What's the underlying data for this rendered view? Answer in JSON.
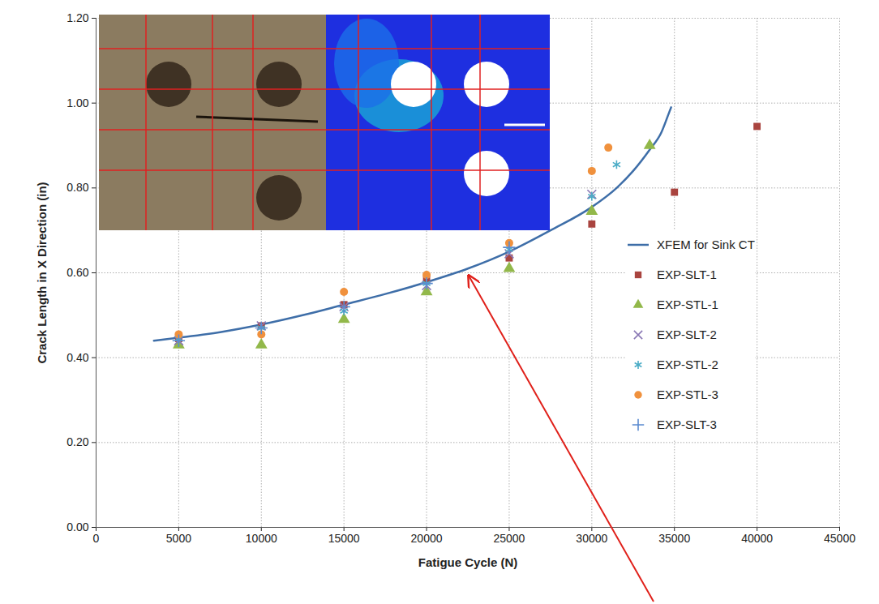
{
  "chart_data": {
    "type": "scatter",
    "x_label": "Fatigue Cycle (N)",
    "y_label": "Crack Length in X Direction (in)",
    "xlim": [
      0,
      45000
    ],
    "xticks": [
      0,
      5000,
      10000,
      15000,
      20000,
      25000,
      30000,
      35000,
      40000,
      45000
    ],
    "ylim": [
      0,
      1.2
    ],
    "yticks": [
      {
        "value": 0,
        "label": "0.00"
      },
      {
        "value": 0.2,
        "label": "0.20"
      },
      {
        "value": 0.4,
        "label": "0.40"
      },
      {
        "value": 0.6,
        "label": "0.60"
      },
      {
        "value": 0.8,
        "label": "0.80"
      },
      {
        "value": 1.0,
        "label": "1.00"
      },
      {
        "value": 1.2,
        "label": "1.20"
      }
    ],
    "grid": true,
    "legend": "right",
    "series": [
      {
        "name": "XFEM for Sink CT",
        "type": "line",
        "color": "#3e6ea8",
        "line_style": "solid",
        "x": [
          3500,
          5000,
          7500,
          10000,
          12500,
          15000,
          17500,
          20000,
          22500,
          25000,
          27500,
          30000,
          31500,
          32500,
          33500,
          34200,
          34700,
          34800
        ],
        "values": [
          0.44,
          0.447,
          0.46,
          0.478,
          0.5,
          0.525,
          0.55,
          0.578,
          0.61,
          0.65,
          0.7,
          0.755,
          0.8,
          0.84,
          0.89,
          0.93,
          0.98,
          0.99
        ]
      },
      {
        "name": "EXP-SLT-1",
        "type": "scatter",
        "color": "#a9443f",
        "marker": "square",
        "x": [
          5000,
          10000,
          15000,
          20000,
          25000,
          30000,
          35000,
          40000
        ],
        "values": [
          0.445,
          0.475,
          0.525,
          0.585,
          0.635,
          0.715,
          0.79,
          0.945
        ]
      },
      {
        "name": "EXP-STL-1",
        "type": "scatter",
        "color": "#92b84a",
        "marker": "triangle",
        "x": [
          5000,
          10000,
          15000,
          20000,
          25000,
          30000,
          33500
        ],
        "values": [
          0.43,
          0.43,
          0.49,
          0.555,
          0.61,
          0.745,
          0.9
        ]
      },
      {
        "name": "EXP-SLT-2",
        "type": "scatter",
        "color": "#8a78b5",
        "marker": "x",
        "x": [
          5000,
          10000,
          15000,
          20000,
          25000,
          30000
        ],
        "values": [
          0.44,
          0.475,
          0.52,
          0.57,
          0.645,
          0.785
        ]
      },
      {
        "name": "EXP-STL-2",
        "type": "scatter",
        "color": "#4bacc6",
        "marker": "asterisk",
        "x": [
          5000,
          10000,
          15000,
          20000,
          25000,
          30000,
          31500
        ],
        "values": [
          0.445,
          0.47,
          0.51,
          0.575,
          0.655,
          0.78,
          0.855
        ]
      },
      {
        "name": "EXP-STL-3",
        "type": "scatter",
        "color": "#f0913d",
        "marker": "circle",
        "x": [
          5000,
          10000,
          15000,
          20000,
          25000,
          30000,
          31000
        ],
        "values": [
          0.455,
          0.455,
          0.555,
          0.595,
          0.67,
          0.84,
          0.895
        ]
      },
      {
        "name": "EXP-SLT-3",
        "type": "scatter",
        "color": "#5b8bd0",
        "marker": "plus",
        "x": [
          5000,
          10000,
          15000,
          20000,
          25000
        ],
        "values": [
          0.44,
          0.47,
          0.52,
          0.575,
          0.66
        ]
      }
    ]
  }
}
